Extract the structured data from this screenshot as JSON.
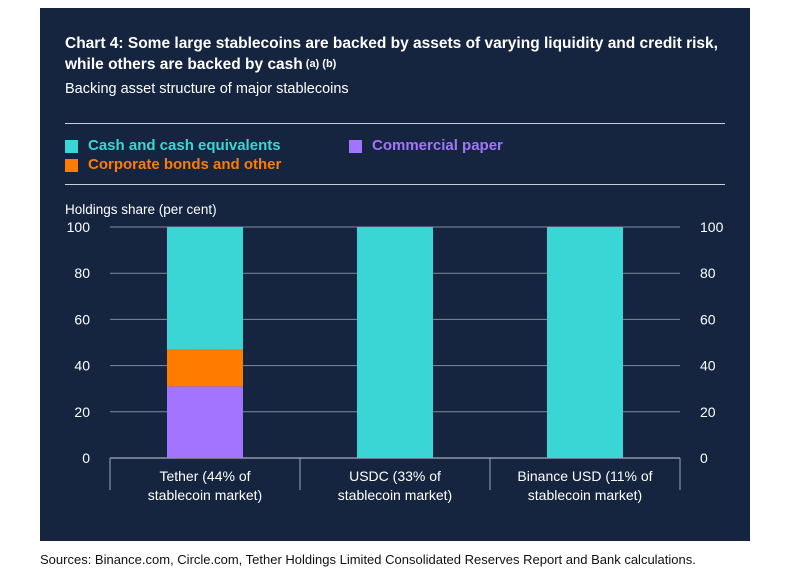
{
  "title_main": "Chart 4: Some large stablecoins are backed by assets of varying liquidity and credit risk, while others are backed by cash",
  "title_notes": "(a) (b)",
  "subtitle": "Backing asset structure of major stablecoins",
  "source": "Sources: Binance.com, Circle.com, Tether Holdings Limited Consolidated Reserves Report and Bank calculations.",
  "legend": [
    {
      "label": "Cash and cash equivalents",
      "color": "#3ad6d6"
    },
    {
      "label": "Commercial paper",
      "color": "#a374ff"
    },
    {
      "label": "Corporate bonds and other",
      "color": "#ff7c00"
    }
  ],
  "chart_data": {
    "type": "bar",
    "stacked": true,
    "ylabel": "Holdings share (per cent)",
    "ylim": [
      0,
      100
    ],
    "yticks": [
      0,
      20,
      40,
      60,
      80,
      100
    ],
    "categories": [
      [
        "Tether (44% of",
        "stablecoin market)"
      ],
      [
        "USDC (33% of",
        "stablecoin market)"
      ],
      [
        "Binance USD (11% of",
        "stablecoin market)"
      ]
    ],
    "series": [
      {
        "name": "Commercial paper",
        "color": "#a374ff",
        "values": [
          31,
          0,
          0
        ]
      },
      {
        "name": "Corporate bonds and other",
        "color": "#ff7c00",
        "values": [
          16,
          0,
          0
        ]
      },
      {
        "name": "Cash and cash equivalents",
        "color": "#3ad6d6",
        "values": [
          53,
          100,
          100
        ]
      }
    ]
  }
}
